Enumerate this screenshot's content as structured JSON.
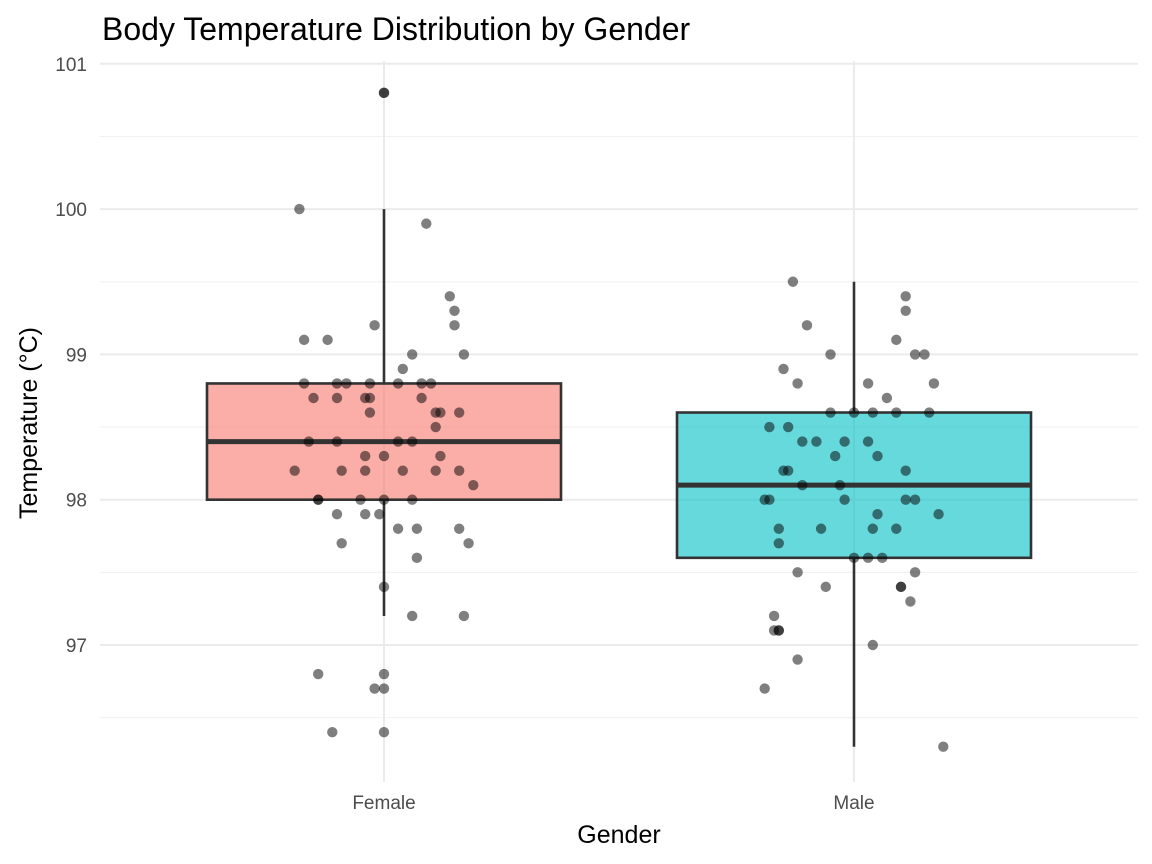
{
  "chart_data": {
    "type": "box",
    "title": "Body Temperature Distribution by Gender",
    "xlabel": "Gender",
    "ylabel": "Temperature (°C)",
    "ylim": [
      96.3,
      101.05
    ],
    "y_ticks": [
      97,
      98,
      99,
      100,
      101
    ],
    "categories": [
      "Female",
      "Male"
    ],
    "grid": true,
    "legend": "none",
    "boxes": [
      {
        "category": "Female",
        "color": "#F8766D",
        "whisker_low": 97.2,
        "q1": 98.0,
        "median": 98.4,
        "q3": 98.8,
        "whisker_high": 100.0
      },
      {
        "category": "Male",
        "color": "#00BFC4",
        "whisker_low": 96.3,
        "q1": 97.6,
        "median": 98.1,
        "q3": 98.6,
        "whisker_high": 99.5
      }
    ],
    "points": [
      {
        "category": "Female",
        "values": [
          100.8,
          100.8,
          100.0,
          99.9,
          99.4,
          99.3,
          99.2,
          99.2,
          99.1,
          99.1,
          99.0,
          99.0,
          98.9,
          98.8,
          98.8,
          98.8,
          98.8,
          98.8,
          98.8,
          98.8,
          98.7,
          98.7,
          98.7,
          98.7,
          98.7,
          98.6,
          98.6,
          98.6,
          98.6,
          98.5,
          98.4,
          98.4,
          98.4,
          98.4,
          98.3,
          98.3,
          98.3,
          98.2,
          98.2,
          98.2,
          98.2,
          98.2,
          98.2,
          98.1,
          98.0,
          98.0,
          98.0,
          98.0,
          98.0,
          97.9,
          97.9,
          97.9,
          97.8,
          97.8,
          97.8,
          97.7,
          97.7,
          97.6,
          97.4,
          97.2,
          97.2,
          96.8,
          96.8,
          96.7,
          96.7,
          96.4,
          96.4
        ],
        "jitter": [
          0,
          0,
          -0.18,
          0.09,
          0.14,
          0.15,
          0.15,
          -0.02,
          -0.17,
          -0.12,
          0.17,
          0.06,
          0.04,
          -0.17,
          -0.08,
          -0.03,
          0.03,
          -0.1,
          0.1,
          0.08,
          -0.15,
          -0.1,
          -0.04,
          -0.03,
          0.08,
          0.12,
          -0.03,
          0.11,
          0.16,
          0.11,
          -0.16,
          -0.1,
          0.03,
          0.06,
          0.12,
          0.0,
          -0.04,
          -0.19,
          -0.09,
          -0.04,
          0.04,
          0.11,
          0.16,
          0.19,
          -0.14,
          -0.14,
          -0.05,
          0.0,
          0.06,
          -0.1,
          -0.04,
          -0.01,
          0.03,
          0.07,
          0.16,
          -0.09,
          0.18,
          0.07,
          0.0,
          0.06,
          0.17,
          -0.14,
          0.0,
          -0.02,
          0.0,
          -0.11,
          0.0
        ]
      },
      {
        "category": "Male",
        "values": [
          99.5,
          99.4,
          99.3,
          99.2,
          99.1,
          99.0,
          99.0,
          99.0,
          98.9,
          98.8,
          98.8,
          98.8,
          98.7,
          98.6,
          98.6,
          98.6,
          98.6,
          98.6,
          98.5,
          98.5,
          98.4,
          98.4,
          98.4,
          98.4,
          98.3,
          98.3,
          98.2,
          98.2,
          98.2,
          98.1,
          98.1,
          98.0,
          98.0,
          98.0,
          98.0,
          98.0,
          97.9,
          97.9,
          97.8,
          97.8,
          97.8,
          97.8,
          97.7,
          97.6,
          97.6,
          97.6,
          97.5,
          97.5,
          97.4,
          97.4,
          97.4,
          97.3,
          97.2,
          97.1,
          97.1,
          97.1,
          97.0,
          96.9,
          96.7,
          96.3
        ],
        "jitter": [
          -0.13,
          0.11,
          0.11,
          -0.1,
          0.09,
          -0.05,
          0.15,
          0.13,
          -0.15,
          0.03,
          -0.12,
          0.17,
          0.07,
          -0.05,
          0.0,
          0.09,
          0.04,
          0.16,
          -0.18,
          -0.14,
          -0.11,
          -0.08,
          -0.02,
          0.03,
          -0.04,
          0.05,
          -0.14,
          -0.15,
          0.11,
          -0.03,
          -0.11,
          -0.19,
          -0.18,
          -0.02,
          0.11,
          0.13,
          0.05,
          0.18,
          -0.16,
          -0.07,
          0.04,
          0.09,
          -0.16,
          0.0,
          0.03,
          0.06,
          -0.12,
          0.13,
          -0.06,
          0.1,
          0.1,
          0.12,
          -0.17,
          -0.17,
          -0.16,
          -0.16,
          0.04,
          -0.12,
          -0.19,
          0.19
        ]
      }
    ]
  }
}
